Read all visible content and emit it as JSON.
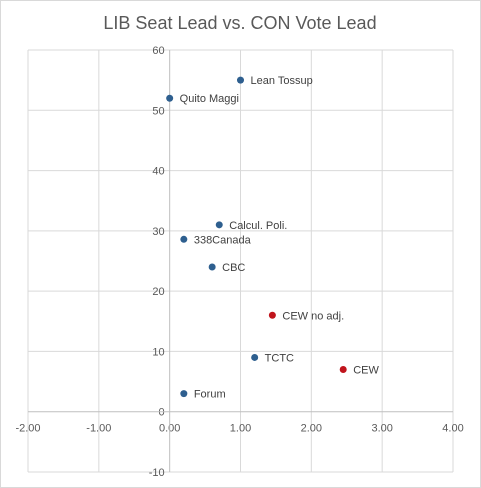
{
  "chart_data": {
    "type": "scatter",
    "title": "LIB Seat Lead vs. CON Vote Lead",
    "xlabel": "",
    "ylabel": "",
    "xlim": [
      -2,
      4
    ],
    "ylim": [
      -10,
      60
    ],
    "x_ticks": [
      "-2.00",
      "-1.00",
      "0.00",
      "1.00",
      "2.00",
      "3.00",
      "4.00"
    ],
    "y_ticks": [
      "-10",
      "0",
      "10",
      "20",
      "30",
      "40",
      "50",
      "60"
    ],
    "grid": "on",
    "legend": "none",
    "colors": {
      "default_point": "#2e5f8f",
      "highlight_point": "#c0141c",
      "grid": "#d9d9d9"
    },
    "points": [
      {
        "label": "Lean Tossup",
        "x": 1.0,
        "y": 55,
        "color": "#2e5f8f"
      },
      {
        "label": "Quito Maggi",
        "x": 0.0,
        "y": 52,
        "color": "#2e5f8f"
      },
      {
        "label": "Calcul. Poli.",
        "x": 0.7,
        "y": 31,
        "color": "#2e5f8f"
      },
      {
        "label": "338Canada",
        "x": 0.2,
        "y": 28.6,
        "color": "#2e5f8f"
      },
      {
        "label": "CBC",
        "x": 0.6,
        "y": 24,
        "color": "#2e5f8f"
      },
      {
        "label": "CEW no adj.",
        "x": 1.45,
        "y": 16,
        "color": "#c0141c"
      },
      {
        "label": "TCTC",
        "x": 1.2,
        "y": 9,
        "color": "#2e5f8f"
      },
      {
        "label": "CEW",
        "x": 2.45,
        "y": 7,
        "color": "#c0141c"
      },
      {
        "label": "Forum",
        "x": 0.2,
        "y": 3,
        "color": "#2e5f8f"
      }
    ]
  }
}
